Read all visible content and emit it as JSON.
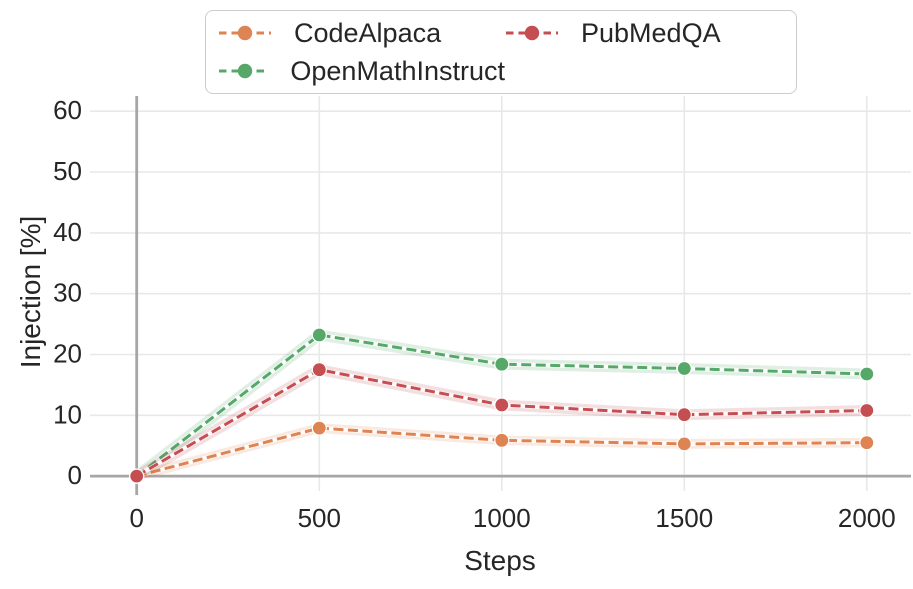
{
  "figure": {
    "background": "#ffffff",
    "text_color": "#262626",
    "grid_color": "#e8e8e8",
    "axis_line_color": "#a6a6a6",
    "legend_border_color": "#cccccc",
    "marker_edge_color": "#ffffff"
  },
  "chart_data": {
    "type": "line",
    "title": "",
    "xlabel": "Steps",
    "ylabel": "Injection [%]",
    "x": [
      0,
      500,
      1000,
      1500,
      2000
    ],
    "xticks": [
      0,
      500,
      1000,
      1500,
      2000
    ],
    "yticks": [
      0,
      10,
      20,
      30,
      40,
      50,
      60
    ],
    "xlim": [
      -128,
      2121
    ],
    "ylim": [
      -3.1,
      62.5
    ],
    "grid": true,
    "line_style": "dashed",
    "marker": "circle",
    "legend": {
      "position": "top-center",
      "columns": 2,
      "order": [
        "CodeAlpaca",
        "OpenMathInstruct",
        "PubMedQA"
      ]
    },
    "series": [
      {
        "name": "CodeAlpaca",
        "color": "#dd8452",
        "values": [
          0,
          7.9,
          5.9,
          5.3,
          5.5
        ],
        "band_halfwidth": 0.8
      },
      {
        "name": "OpenMathInstruct",
        "color": "#55a868",
        "values": [
          0,
          23.2,
          18.4,
          17.7,
          16.8
        ],
        "band_halfwidth": 0.9
      },
      {
        "name": "PubMedQA",
        "color": "#c44e52",
        "values": [
          0,
          17.5,
          11.7,
          10.1,
          10.8
        ],
        "band_halfwidth": 0.9
      }
    ]
  }
}
